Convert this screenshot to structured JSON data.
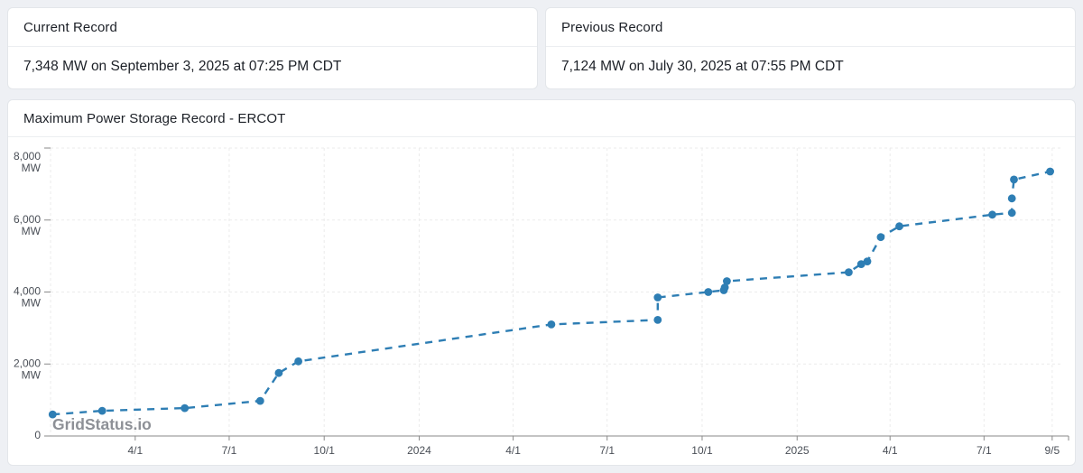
{
  "cards": {
    "current": {
      "title": "Current Record",
      "value": "7,348 MW on September 3, 2025 at 07:25 PM CDT"
    },
    "previous": {
      "title": "Previous Record",
      "value": "7,124 MW on July 30, 2025 at 07:55 PM CDT"
    }
  },
  "chart_card": {
    "title": "Maximum Power Storage Record - ERCOT"
  },
  "watermark": "GridStatus.io",
  "chart_data": {
    "type": "line",
    "title": "Maximum Power Storage Record - ERCOT",
    "xlabel": "",
    "ylabel": "MW",
    "ylim": [
      0,
      8000
    ],
    "grid": true,
    "line_style": "dashed",
    "color": "#2e7eb4",
    "axis_color": "#8a8a8a",
    "gridline_color": "#ebebeb",
    "x_range": [
      "2023-01-09",
      "2025-09-13"
    ],
    "x_ticks": [
      {
        "date": "2023-04-01",
        "label": "4/1"
      },
      {
        "date": "2023-07-01",
        "label": "7/1"
      },
      {
        "date": "2023-10-01",
        "label": "10/1"
      },
      {
        "date": "2024-01-01",
        "label": "2024"
      },
      {
        "date": "2024-04-01",
        "label": "4/1"
      },
      {
        "date": "2024-07-01",
        "label": "7/1"
      },
      {
        "date": "2024-10-01",
        "label": "10/1"
      },
      {
        "date": "2025-01-01",
        "label": "2025"
      },
      {
        "date": "2025-04-01",
        "label": "4/1"
      },
      {
        "date": "2025-07-01",
        "label": "7/1"
      },
      {
        "date": "2025-09-05",
        "label": "9/5"
      }
    ],
    "y_ticks": [
      {
        "value": 0,
        "label": "0",
        "unit": ""
      },
      {
        "value": 2000,
        "label": "2,000",
        "unit": "MW"
      },
      {
        "value": 4000,
        "label": "4,000",
        "unit": "MW"
      },
      {
        "value": 6000,
        "label": "6,000",
        "unit": "MW"
      },
      {
        "value": 8000,
        "label": "8,000",
        "unit": "MW"
      }
    ],
    "series": [
      {
        "name": "Maximum Power Storage Record",
        "points": [
          {
            "date": "2023-01-11",
            "mw": 600
          },
          {
            "date": "2023-02-28",
            "mw": 700
          },
          {
            "date": "2023-05-19",
            "mw": 775
          },
          {
            "date": "2023-07-31",
            "mw": 975
          },
          {
            "date": "2023-08-18",
            "mw": 1750
          },
          {
            "date": "2023-09-06",
            "mw": 2075
          },
          {
            "date": "2024-05-08",
            "mw": 3100
          },
          {
            "date": "2024-08-19",
            "mw": 3225
          },
          {
            "date": "2024-08-19",
            "mw": 3850
          },
          {
            "date": "2024-10-07",
            "mw": 4000
          },
          {
            "date": "2024-10-22",
            "mw": 4050
          },
          {
            "date": "2024-10-23",
            "mw": 4125
          },
          {
            "date": "2024-10-25",
            "mw": 4300
          },
          {
            "date": "2025-02-20",
            "mw": 4550
          },
          {
            "date": "2025-03-04",
            "mw": 4775
          },
          {
            "date": "2025-03-10",
            "mw": 4850
          },
          {
            "date": "2025-03-23",
            "mw": 5525
          },
          {
            "date": "2025-04-10",
            "mw": 5825
          },
          {
            "date": "2025-07-09",
            "mw": 6150
          },
          {
            "date": "2025-07-28",
            "mw": 6200
          },
          {
            "date": "2025-07-28",
            "mw": 6600
          },
          {
            "date": "2025-07-30",
            "mw": 7124
          },
          {
            "date": "2025-09-03",
            "mw": 7348
          }
        ]
      }
    ]
  }
}
